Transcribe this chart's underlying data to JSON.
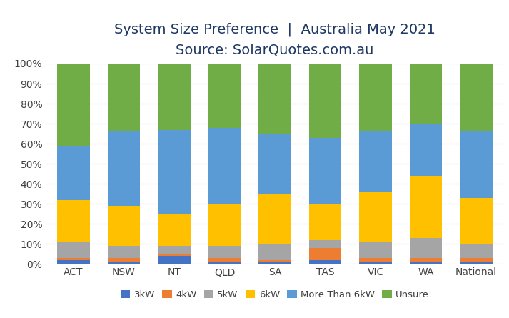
{
  "title_line1": "System Size Preference  |  Australia May 2021",
  "title_line2": "Source: SolarQuotes.com.au",
  "categories": [
    "ACT",
    "NSW",
    "NT",
    "QLD",
    "SA",
    "TAS",
    "VIC",
    "WA",
    "National"
  ],
  "series": {
    "3kW": [
      2,
      1,
      4,
      1,
      1,
      2,
      1,
      1,
      1
    ],
    "4kW": [
      1,
      2,
      1,
      2,
      1,
      6,
      2,
      2,
      2
    ],
    "5kW": [
      8,
      6,
      4,
      6,
      8,
      4,
      8,
      10,
      7
    ],
    "6kW": [
      21,
      20,
      16,
      21,
      25,
      18,
      25,
      31,
      23
    ],
    "More Than 6kW": [
      27,
      37,
      42,
      38,
      30,
      33,
      30,
      26,
      33
    ],
    "Unsure": [
      41,
      34,
      33,
      32,
      35,
      37,
      34,
      30,
      34
    ]
  },
  "colors": {
    "3kW": "#4472c4",
    "4kW": "#ed7d31",
    "5kW": "#a5a5a5",
    "6kW": "#ffc000",
    "More Than 6kW": "#5b9bd5",
    "Unsure": "#70ad47"
  },
  "legend_order": [
    "3kW",
    "4kW",
    "5kW",
    "6kW",
    "More Than 6kW",
    "Unsure"
  ],
  "ylim": [
    0,
    100
  ],
  "background_color": "#ffffff",
  "grid_color": "#c0c0c0",
  "title_fontsize": 14,
  "subtitle_fontsize": 13,
  "tick_fontsize": 10,
  "legend_fontsize": 9.5,
  "title_color": "#1f3864",
  "subtitle_color": "#1f3864",
  "tick_color": "#404040",
  "bar_width": 0.65
}
